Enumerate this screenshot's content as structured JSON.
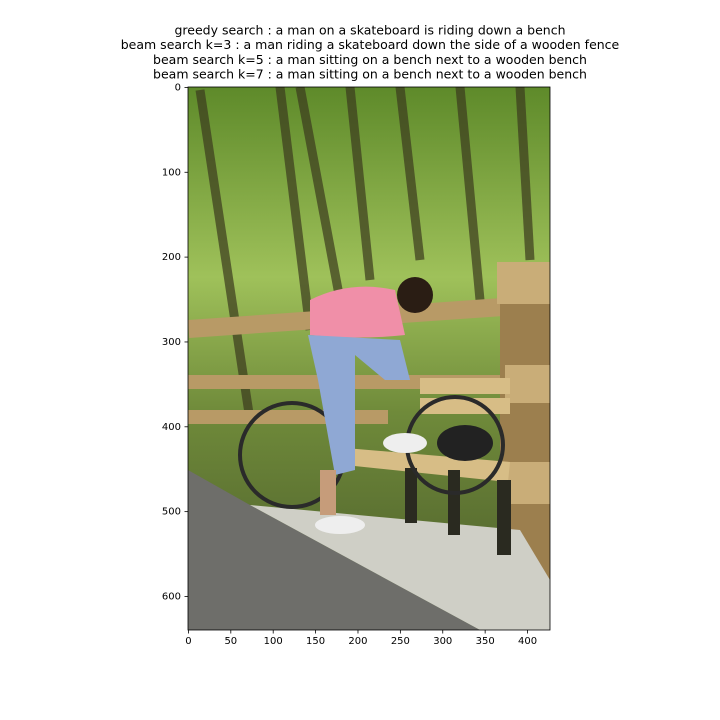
{
  "chart_data": {
    "type": "image",
    "title": [
      "greedy search : a man on a skateboard is riding down a bench",
      "beam search k=3 :  a man riding a skateboard down the side of a wooden fence",
      "beam search k=5 :  a man sitting on a bench next to a wooden bench",
      "beam search k=7 :  a man sitting on a bench next to a wooden bench"
    ],
    "xlim": [
      -0.5,
      426.5
    ],
    "ylim": [
      639.5,
      -0.5
    ],
    "xticks": [
      0,
      50,
      100,
      150,
      200,
      250,
      300,
      350,
      400
    ],
    "yticks": [
      0,
      100,
      200,
      300,
      400,
      500,
      600
    ]
  }
}
